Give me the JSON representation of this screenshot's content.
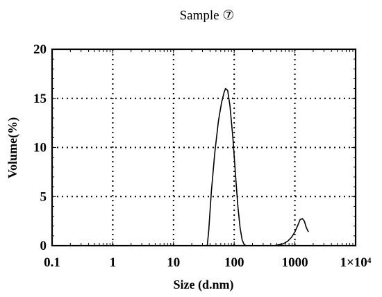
{
  "chart_data": {
    "type": "line",
    "title": "Sample ⑦",
    "xlabel": "Size (d.nm)",
    "ylabel": "Volume(%)",
    "xscale": "log",
    "xlim": [
      0.1,
      10000
    ],
    "ylim": [
      0,
      20
    ],
    "grid": true,
    "grid_style": "dotted",
    "legend": "none",
    "x_tick_labels": [
      {
        "value": 0.1,
        "label": "0.1"
      },
      {
        "value": 1,
        "label": "1"
      },
      {
        "value": 10,
        "label": "10"
      },
      {
        "value": 100,
        "label": "100"
      },
      {
        "value": 1000,
        "label": "1000"
      },
      {
        "value": 10000,
        "label": "1×10⁴"
      }
    ],
    "y_tick_labels": [
      {
        "value": 0,
        "label": "0"
      },
      {
        "value": 5,
        "label": "5"
      },
      {
        "value": 10,
        "label": "10"
      },
      {
        "value": 15,
        "label": "15"
      },
      {
        "value": 20,
        "label": "20"
      }
    ],
    "series": [
      {
        "color": "#000000",
        "points": [
          [
            0.4,
            0
          ],
          [
            1,
            0
          ],
          [
            10,
            0
          ],
          [
            30,
            0
          ],
          [
            36,
            0
          ],
          [
            38,
            1.5
          ],
          [
            42,
            5.5
          ],
          [
            48,
            9.5
          ],
          [
            55,
            12.7
          ],
          [
            62,
            14.6
          ],
          [
            68,
            15.6
          ],
          [
            72,
            16.0
          ],
          [
            78,
            15.8
          ],
          [
            85,
            14.3
          ],
          [
            95,
            11.0
          ],
          [
            105,
            7.2
          ],
          [
            115,
            4.0
          ],
          [
            125,
            1.8
          ],
          [
            135,
            0.6
          ],
          [
            145,
            0.15
          ],
          [
            155,
            0
          ]
        ]
      },
      {
        "color": "#000000",
        "points": [
          [
            155,
            0
          ],
          [
            300,
            0
          ],
          [
            450,
            0
          ],
          [
            550,
            0.1
          ],
          [
            650,
            0.2
          ],
          [
            760,
            0.45
          ],
          [
            880,
            0.85
          ],
          [
            1000,
            1.4
          ],
          [
            1120,
            2.1
          ],
          [
            1220,
            2.65
          ],
          [
            1330,
            2.75
          ],
          [
            1430,
            2.5
          ],
          [
            1530,
            1.9
          ],
          [
            1620,
            1.55
          ],
          [
            1680,
            1.4
          ]
        ]
      }
    ]
  }
}
